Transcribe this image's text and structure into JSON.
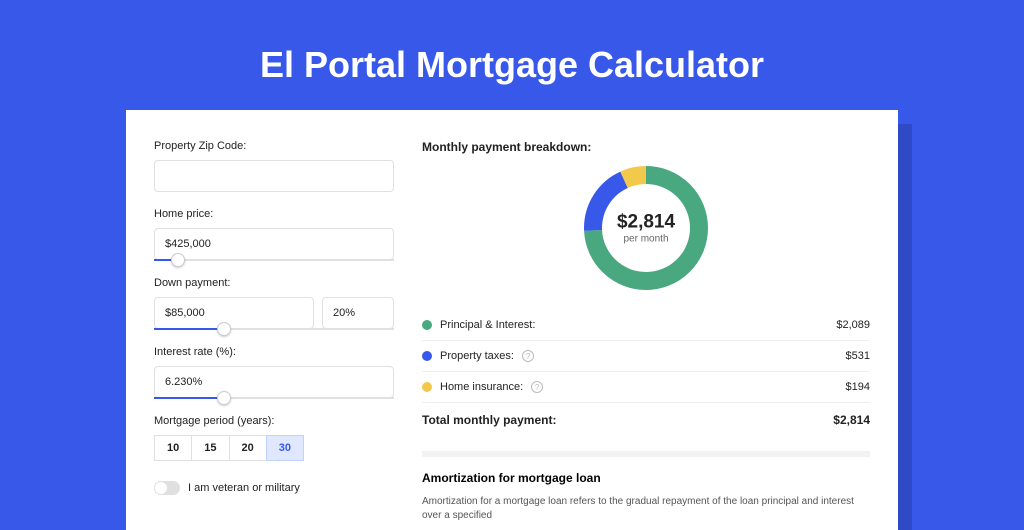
{
  "page": {
    "title": "El Portal Mortgage Calculator",
    "background_color": "#3858e9",
    "card_background": "#ffffff"
  },
  "form": {
    "zip": {
      "label": "Property Zip Code:",
      "value": ""
    },
    "home_price": {
      "label": "Home price:",
      "value": "$425,000",
      "slider_pct": 10
    },
    "down_payment": {
      "label": "Down payment:",
      "value": "$85,000",
      "pct": "20%",
      "slider_pct": 29
    },
    "interest_rate": {
      "label": "Interest rate (%):",
      "value": "6.230%",
      "slider_pct": 29
    },
    "mortgage_period": {
      "label": "Mortgage period (years):",
      "options": [
        "10",
        "15",
        "20",
        "30"
      ],
      "active": "30"
    },
    "veteran": {
      "label": "I am veteran or military",
      "on": false
    }
  },
  "breakdown": {
    "title": "Monthly payment breakdown:",
    "center_amount": "$2,814",
    "center_label": "per month",
    "items": [
      {
        "label": "Principal & Interest:",
        "value": "$2,089",
        "color": "#4aa880",
        "pct": 74.2,
        "help": false
      },
      {
        "label": "Property taxes:",
        "value": "$531",
        "color": "#3858e9",
        "pct": 18.9,
        "help": true
      },
      {
        "label": "Home insurance:",
        "value": "$194",
        "color": "#f3c94b",
        "pct": 6.9,
        "help": true
      }
    ],
    "total_label": "Total monthly payment:",
    "total_value": "$2,814"
  },
  "donut": {
    "type": "donut",
    "size": 124,
    "stroke_width": 18,
    "background_color": "#ffffff"
  },
  "amortization": {
    "title": "Amortization for mortgage loan",
    "text": "Amortization for a mortgage loan refers to the gradual repayment of the loan principal and interest over a specified"
  },
  "colors": {
    "accent": "#3858e9",
    "border": "#e0e0e0",
    "text": "#222222",
    "muted": "#666666"
  }
}
